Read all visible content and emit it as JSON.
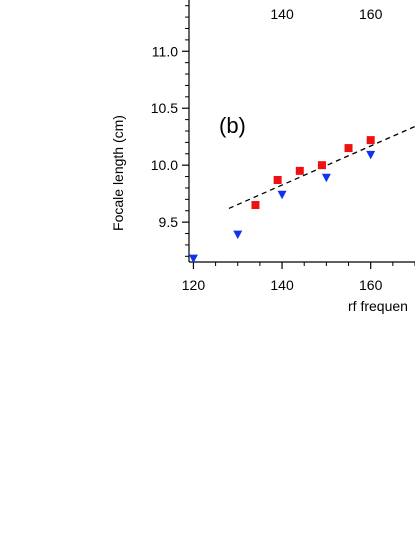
{
  "chart_data": {
    "type": "scatter",
    "panel_label": "(b)",
    "xlabel": "rf frequen",
    "ylabel": "Focale length (cm)",
    "xlim": [
      119,
      170
    ],
    "ylim": [
      9.15,
      11.45
    ],
    "top_tick_labels": [
      "140",
      "160"
    ],
    "top_tick_values": [
      140,
      160
    ],
    "x_ticks": [
      120,
      140,
      160
    ],
    "x_tick_labels": [
      "120",
      "140",
      "160"
    ],
    "y_ticks": [
      9.5,
      10.0,
      10.5,
      11.0
    ],
    "y_tick_labels": [
      "9.5",
      "10.0",
      "10.5",
      "11.0"
    ],
    "grid": false,
    "series": [
      {
        "marker": "square",
        "color": "#ee1111",
        "x": [
          134,
          139,
          144,
          149,
          155,
          160
        ],
        "y": [
          9.65,
          9.87,
          9.95,
          10.0,
          10.15,
          10.22
        ]
      },
      {
        "marker": "triangle-down",
        "color": "#1133ee",
        "x": [
          120,
          130,
          140,
          150,
          160
        ],
        "y": [
          9.18,
          9.39,
          9.74,
          9.89,
          10.09
        ]
      }
    ],
    "fit_line": {
      "style": "dashed",
      "color": "#000000",
      "x": [
        128,
        170
      ],
      "y": [
        9.62,
        10.34
      ]
    }
  }
}
